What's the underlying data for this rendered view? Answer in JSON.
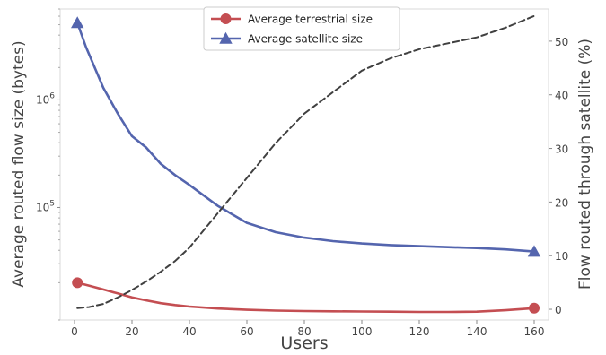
{
  "chart_data": {
    "type": "line",
    "title": "",
    "xlabel": "Users",
    "ylabel_left": "Average routed flow size (bytes)",
    "ylabel_right": "Flow routed through satellite (%)",
    "xlim": [
      -5,
      165
    ],
    "xticks": [
      0,
      20,
      40,
      60,
      80,
      100,
      120,
      140,
      160
    ],
    "xtick_labels": [
      "0",
      "20",
      "40",
      "60",
      "80",
      "100",
      "120",
      "140",
      "160"
    ],
    "y_left_scale": "log",
    "y_left_lim": [
      9000,
      7000000
    ],
    "y_left_ticks": [
      {
        "value": 100000,
        "base": "10",
        "exp": "5"
      },
      {
        "value": 1000000,
        "base": "10",
        "exp": "6"
      }
    ],
    "y_right_lim": [
      -2,
      56
    ],
    "y_right_ticks": [
      0,
      10,
      20,
      30,
      40,
      50
    ],
    "y_right_tick_labels": [
      "0",
      "10",
      "20",
      "30",
      "40",
      "50"
    ],
    "grid": false,
    "legend_position": "top-center",
    "series": [
      {
        "name": "Average terrestrial size",
        "axis": "left",
        "color": "#c44e52",
        "marker": "circle",
        "marker_at": [
          1,
          160
        ],
        "x": [
          1,
          5,
          10,
          15,
          20,
          25,
          30,
          35,
          40,
          50,
          60,
          70,
          80,
          90,
          100,
          110,
          120,
          130,
          140,
          150,
          160
        ],
        "y": [
          20000,
          18800,
          17300,
          15900,
          14600,
          13700,
          12900,
          12400,
          12000,
          11500,
          11200,
          11000,
          10900,
          10850,
          10800,
          10750,
          10700,
          10700,
          10750,
          11100,
          11600
        ]
      },
      {
        "name": "Average satellite size",
        "axis": "left",
        "color": "#5465ae",
        "marker": "triangle",
        "marker_at": [
          1,
          160
        ],
        "x": [
          1,
          4,
          10,
          15,
          20,
          25,
          30,
          35,
          40,
          50,
          60,
          70,
          80,
          90,
          100,
          110,
          120,
          130,
          140,
          150,
          160
        ],
        "y": [
          5200000,
          3100000,
          1300000,
          750000,
          460000,
          360000,
          255000,
          200000,
          162000,
          103000,
          72000,
          59000,
          52500,
          48700,
          46300,
          44700,
          43700,
          42800,
          42000,
          40800,
          39000
        ]
      },
      {
        "name": "",
        "axis": "right",
        "color": "#404040",
        "dashed": true,
        "x": [
          1,
          5,
          10,
          15,
          20,
          25,
          30,
          35,
          40,
          50,
          60,
          70,
          80,
          90,
          100,
          110,
          120,
          130,
          140,
          150,
          160
        ],
        "y": [
          0.2,
          0.4,
          1.0,
          2.2,
          3.6,
          5.2,
          7.0,
          9.0,
          11.5,
          18.0,
          24.5,
          31.0,
          36.5,
          40.5,
          44.5,
          46.8,
          48.5,
          49.6,
          50.7,
          52.5,
          54.7
        ]
      }
    ]
  }
}
